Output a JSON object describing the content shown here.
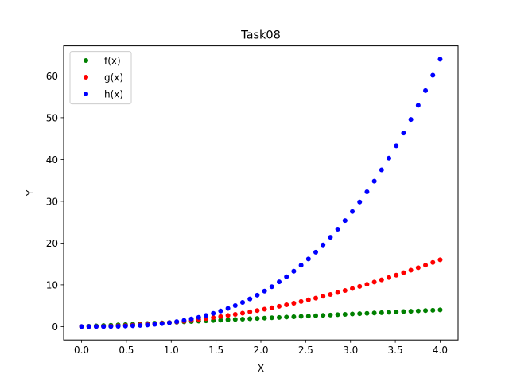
{
  "chart_data": {
    "type": "scatter",
    "title": "Task08",
    "xlabel": "X",
    "ylabel": "Y",
    "xlim": [
      -0.2,
      4.2
    ],
    "ylim": [
      -3.2,
      67.2
    ],
    "xticks": [
      0.0,
      0.5,
      1.0,
      1.5,
      2.0,
      2.5,
      3.0,
      3.5,
      4.0
    ],
    "xtick_labels": [
      "0.0",
      "0.5",
      "1.0",
      "1.5",
      "2.0",
      "2.5",
      "3.0",
      "3.5",
      "4.0"
    ],
    "yticks": [
      0,
      10,
      20,
      30,
      40,
      50,
      60
    ],
    "ytick_labels": [
      "0",
      "10",
      "20",
      "30",
      "40",
      "50",
      "60"
    ],
    "grid": false,
    "legend": {
      "placement": "top-left"
    },
    "x": [
      0.0,
      0.0816,
      0.1633,
      0.2449,
      0.3265,
      0.4082,
      0.4898,
      0.5714,
      0.6531,
      0.7347,
      0.8163,
      0.898,
      0.9796,
      1.0612,
      1.1429,
      1.2245,
      1.3061,
      1.3878,
      1.4694,
      1.551,
      1.6327,
      1.7143,
      1.7959,
      1.8776,
      1.9592,
      2.0408,
      2.1224,
      2.2041,
      2.2857,
      2.3673,
      2.449,
      2.5306,
      2.6122,
      2.6939,
      2.7755,
      2.8571,
      2.9388,
      3.0204,
      3.102,
      3.1837,
      3.2653,
      3.3469,
      3.4286,
      3.5102,
      3.5918,
      3.6735,
      3.7551,
      3.8367,
      3.9184,
      4.0
    ],
    "series": [
      {
        "name": "f(x)",
        "color": "#008000",
        "values": [
          0.0,
          0.0816,
          0.1633,
          0.2449,
          0.3265,
          0.4082,
          0.4898,
          0.5714,
          0.6531,
          0.7347,
          0.8163,
          0.898,
          0.9796,
          1.0612,
          1.1429,
          1.2245,
          1.3061,
          1.3878,
          1.4694,
          1.551,
          1.6327,
          1.7143,
          1.7959,
          1.8776,
          1.9592,
          2.0408,
          2.1224,
          2.2041,
          2.2857,
          2.3673,
          2.449,
          2.5306,
          2.6122,
          2.6939,
          2.7755,
          2.8571,
          2.9388,
          3.0204,
          3.102,
          3.1837,
          3.2653,
          3.3469,
          3.4286,
          3.5102,
          3.5918,
          3.6735,
          3.7551,
          3.8367,
          3.9184,
          4.0
        ]
      },
      {
        "name": "g(x)",
        "color": "#ff0000",
        "values": [
          0.0,
          0.0067,
          0.0267,
          0.06,
          0.1066,
          0.1666,
          0.2399,
          0.3265,
          0.4265,
          0.5398,
          0.6664,
          0.8063,
          0.9596,
          1.1262,
          1.3061,
          1.4994,
          1.7059,
          1.9259,
          2.1591,
          2.4057,
          2.6656,
          2.9388,
          3.2253,
          3.5252,
          3.8384,
          4.1649,
          4.5048,
          4.858,
          5.2245,
          5.6043,
          5.9975,
          6.404,
          6.8238,
          7.257,
          7.7034,
          8.1633,
          8.6364,
          9.1229,
          9.6227,
          10.1358,
          10.6622,
          11.202,
          11.7551,
          12.3215,
          12.9013,
          13.4944,
          14.1008,
          14.7205,
          15.3536,
          16.0
        ]
      },
      {
        "name": "h(x)",
        "color": "#0000ff",
        "values": [
          0.0,
          0.0005,
          0.0044,
          0.0147,
          0.0348,
          0.068,
          0.1175,
          0.1866,
          0.2785,
          0.3966,
          0.544,
          0.724,
          0.94,
          1.195,
          1.4927,
          1.836,
          2.2282,
          2.6727,
          3.1726,
          3.7311,
          4.3521,
          5.0379,
          5.7923,
          6.6188,
          7.5203,
          8.5001,
          9.561,
          10.7078,
          11.9418,
          13.2671,
          14.6873,
          16.2061,
          17.8254,
          19.5503,
          21.3823,
          23.3235,
          25.3815,
          27.5541,
          29.8485,
          32.2686,
          34.8116,
          37.4929,
          40.3032,
          43.2455,
          46.3332,
          49.5718,
          52.9519,
          56.4794,
          60.1615,
          64.0
        ]
      }
    ]
  }
}
